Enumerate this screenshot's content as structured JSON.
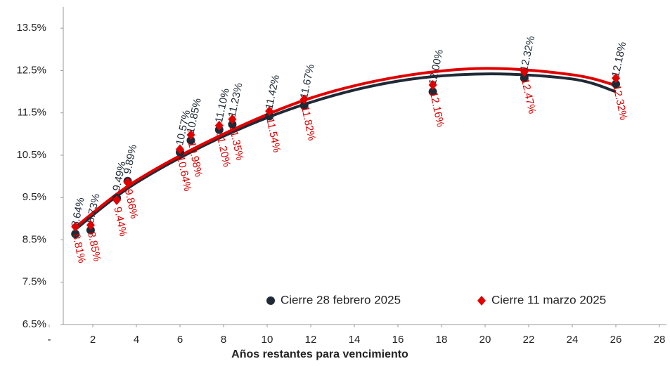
{
  "chart_data": {
    "type": "scatter",
    "x_label": "Años restantes para vencimiento",
    "xlim": [
      0,
      28
    ],
    "ylim": [
      6.5,
      14
    ],
    "xticks": [
      {
        "value": 0,
        "label": "-"
      },
      2,
      4,
      6,
      8,
      10,
      12,
      14,
      16,
      18,
      20,
      22,
      24,
      26,
      28
    ],
    "yticks": [
      {
        "value": 6.5,
        "label": "6.5%"
      },
      {
        "value": 7.5,
        "label": "7.5%"
      },
      {
        "value": 8.5,
        "label": "8.5%"
      },
      {
        "value": 9.5,
        "label": "9.5%"
      },
      {
        "value": 10.5,
        "label": "10.5%"
      },
      {
        "value": 11.5,
        "label": "11.5%"
      },
      {
        "value": 12.5,
        "label": "12.5%"
      },
      {
        "value": 13.5,
        "label": "13.5%"
      }
    ],
    "legend": "bottom-right",
    "series": [
      {
        "name": "Cierre 28 febrero 2025",
        "color": "#1f2a36",
        "marker": "circle",
        "x": [
          1.2,
          1.9,
          3.1,
          3.6,
          6.0,
          6.5,
          7.8,
          8.4,
          10.1,
          11.7,
          17.6,
          21.8,
          26.0
        ],
        "values": [
          8.64,
          8.73,
          9.49,
          9.89,
          10.57,
          10.85,
          11.1,
          11.23,
          11.42,
          11.67,
          12.0,
          12.32,
          12.18
        ],
        "value_labels": [
          "8.64%",
          "8.73%",
          "9.49%",
          "9.89%",
          "10.57%",
          "10.85%",
          "11.10%",
          "11.23%",
          "11.42%",
          "11.67%",
          "12.00%",
          "12.32%",
          "12.18%"
        ],
        "trend_x": [
          1.2,
          4,
          8,
          12,
          16,
          20,
          24,
          26
        ],
        "trend_values": [
          8.75,
          9.85,
          10.95,
          11.75,
          12.25,
          12.42,
          12.3,
          12.0
        ]
      },
      {
        "name": "Cierre 11 marzo 2025",
        "color": "#e00000",
        "marker": "diamond",
        "x": [
          1.2,
          1.9,
          3.1,
          3.6,
          6.0,
          6.5,
          7.8,
          8.4,
          10.1,
          11.7,
          17.6,
          21.8,
          26.0
        ],
        "values": [
          8.81,
          8.85,
          9.44,
          9.86,
          10.64,
          10.98,
          11.2,
          11.35,
          11.54,
          11.82,
          12.16,
          12.47,
          12.32
        ],
        "value_labels": [
          "8.81%",
          "8.85%",
          "9.44%",
          "9.86%",
          "10.64%",
          "10.98%",
          "11.20%",
          "11.35%",
          "11.54%",
          "11.82%",
          "12.16%",
          "12.47%",
          "12.32%"
        ],
        "trend_x": [
          1.2,
          4,
          8,
          12,
          16,
          20,
          24,
          26
        ],
        "trend_values": [
          8.8,
          9.9,
          11.0,
          11.85,
          12.35,
          12.55,
          12.4,
          12.15
        ]
      }
    ]
  }
}
